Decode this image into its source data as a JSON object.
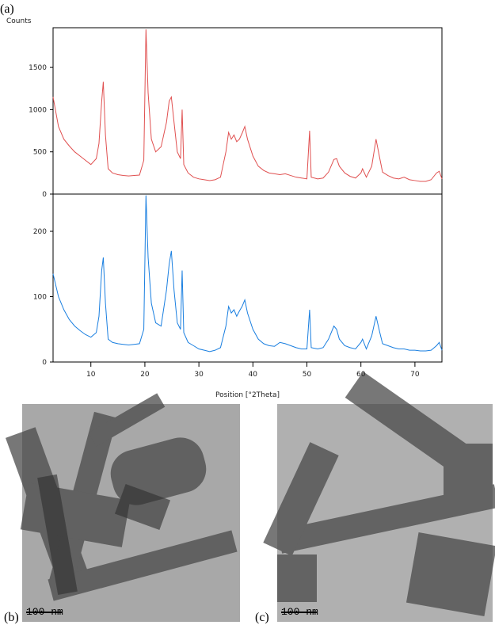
{
  "panel_labels": [
    "(a)",
    "(b)",
    "(c)"
  ],
  "scale_bars": [
    "100 nm",
    "100 nm"
  ],
  "chart_data": [
    {
      "type": "line",
      "ylabel": "Counts",
      "x": [
        3,
        4,
        5,
        6,
        7,
        8,
        9,
        10,
        11,
        11.5,
        12,
        12.3,
        12.7,
        13.2,
        14,
        15,
        16,
        17,
        18,
        19,
        19.8,
        20.2,
        20.6,
        21.2,
        22,
        23,
        24,
        24.5,
        24.9,
        25.4,
        26,
        26.6,
        26.9,
        27.2,
        28,
        29,
        30,
        31,
        32,
        33,
        34,
        35,
        35.5,
        36,
        36.5,
        37,
        37.5,
        38,
        38.5,
        39,
        40,
        41,
        42,
        43,
        44,
        45,
        46,
        47,
        48,
        49,
        50,
        50.5,
        50.8,
        52,
        53,
        54,
        55,
        55.5,
        56,
        57,
        58,
        59,
        60,
        60.3,
        61,
        62,
        62.8,
        63.5,
        64,
        65,
        66,
        67,
        68,
        69,
        70,
        71,
        72,
        73,
        74,
        74.5,
        75
      ],
      "series": [
        {
          "color": "#e05050",
          "values": [
            1150,
            800,
            650,
            570,
            500,
            450,
            400,
            350,
            420,
            600,
            1100,
            1330,
            700,
            300,
            250,
            230,
            220,
            215,
            220,
            225,
            400,
            1950,
            1200,
            650,
            500,
            560,
            850,
            1100,
            1150,
            850,
            500,
            420,
            1000,
            350,
            250,
            200,
            180,
            170,
            160,
            170,
            200,
            500,
            730,
            650,
            700,
            620,
            650,
            720,
            800,
            650,
            450,
            330,
            280,
            250,
            240,
            230,
            240,
            220,
            200,
            190,
            180,
            750,
            200,
            180,
            190,
            260,
            410,
            420,
            330,
            250,
            210,
            190,
            250,
            300,
            200,
            330,
            650,
            420,
            260,
            220,
            190,
            180,
            200,
            170,
            160,
            150,
            150,
            170,
            250,
            270,
            180
          ]
        }
      ],
      "xlim": [
        3,
        75
      ],
      "ylim": [
        0,
        1970
      ],
      "yticks": [
        0,
        500,
        1000,
        1500
      ],
      "grid": false
    },
    {
      "type": "line",
      "xlabel": "Position [°2Theta]",
      "x": [
        3,
        4,
        5,
        6,
        7,
        8,
        9,
        10,
        11,
        11.5,
        12,
        12.3,
        12.7,
        13.2,
        14,
        15,
        16,
        17,
        18,
        19,
        19.8,
        20.2,
        20.6,
        21.2,
        22,
        23,
        24,
        24.5,
        24.9,
        25.4,
        26,
        26.6,
        26.9,
        27.2,
        28,
        29,
        30,
        31,
        32,
        33,
        34,
        35,
        35.5,
        36,
        36.5,
        37,
        37.5,
        38,
        38.5,
        39,
        40,
        41,
        42,
        43,
        44,
        45,
        46,
        47,
        48,
        49,
        50,
        50.5,
        50.8,
        52,
        53,
        54,
        55,
        55.5,
        56,
        57,
        58,
        59,
        60,
        60.3,
        61,
        62,
        62.8,
        63.5,
        64,
        65,
        66,
        67,
        68,
        69,
        70,
        71,
        72,
        73,
        74,
        74.5,
        75
      ],
      "series": [
        {
          "color": "#1a7fe0",
          "values": [
            135,
            100,
            80,
            65,
            55,
            48,
            42,
            38,
            45,
            70,
            140,
            160,
            90,
            35,
            30,
            28,
            27,
            26,
            27,
            28,
            50,
            255,
            160,
            90,
            60,
            55,
            110,
            150,
            170,
            110,
            60,
            50,
            140,
            45,
            30,
            25,
            20,
            18,
            16,
            18,
            22,
            55,
            85,
            75,
            80,
            70,
            78,
            85,
            95,
            75,
            50,
            35,
            28,
            25,
            24,
            30,
            28,
            25,
            22,
            20,
            20,
            80,
            22,
            20,
            22,
            35,
            55,
            50,
            35,
            25,
            22,
            20,
            30,
            35,
            20,
            40,
            70,
            45,
            28,
            25,
            22,
            20,
            20,
            18,
            18,
            17,
            17,
            18,
            25,
            30,
            18
          ]
        }
      ],
      "xlim": [
        3,
        75
      ],
      "ylim": [
        0,
        257
      ],
      "yticks": [
        0,
        100,
        200
      ],
      "xticks": [
        10,
        20,
        30,
        40,
        50,
        60,
        70
      ],
      "grid": false
    }
  ]
}
